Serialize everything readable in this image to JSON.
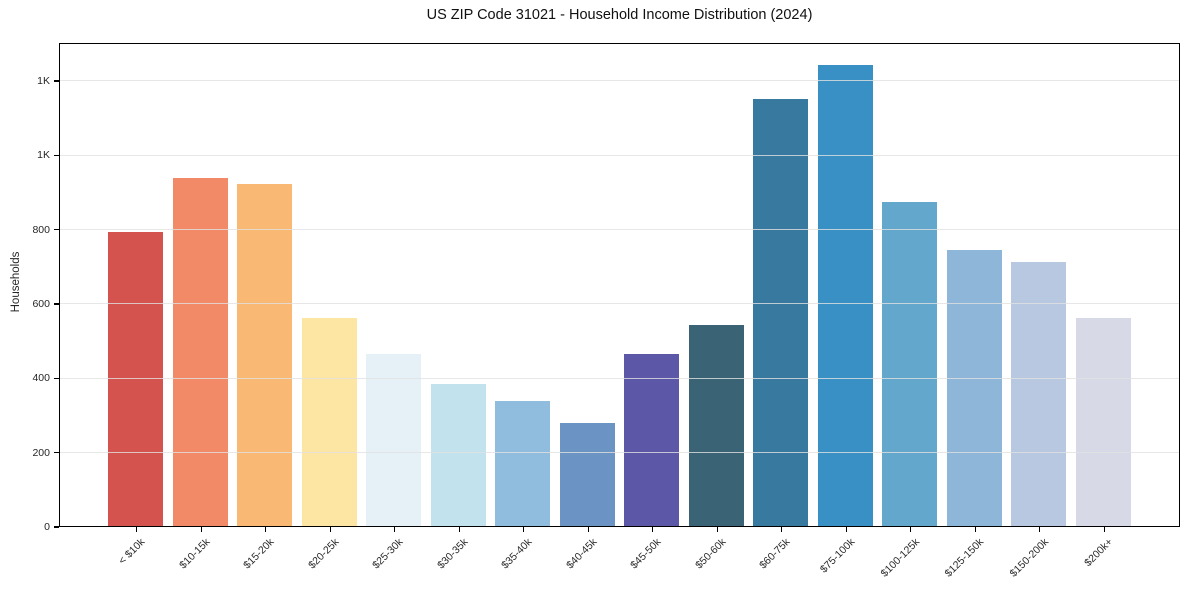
{
  "figure": {
    "background": "#ffffff"
  },
  "chart_data": {
    "type": "bar",
    "title": "US ZIP Code 31021 - Household Income Distribution (2024)",
    "xlabel": "",
    "ylabel": "Households",
    "categories": [
      "< $10k",
      "$10-15k",
      "$15-20k",
      "$20-25k",
      "$25-30k",
      "$30-35k",
      "$35-40k",
      "$40-45k",
      "$45-50k",
      "$50-60k",
      "$60-75k",
      "$75-100k",
      "$100-125k",
      "$125-150k",
      "$150-200k",
      "$200k+"
    ],
    "values": [
      790,
      935,
      920,
      560,
      462,
      382,
      336,
      278,
      462,
      542,
      1148,
      1239,
      871,
      743,
      711,
      560
    ],
    "bar_colors": [
      "#d5534e",
      "#f28a68",
      "#f9b873",
      "#fde6a3",
      "#e5f1f6",
      "#c2e2ee",
      "#90bddd",
      "#6b93c4",
      "#5c57a7",
      "#3a6375",
      "#37799f",
      "#3890c4",
      "#64a7cd",
      "#8db6d8",
      "#b7c8e0",
      "#d8d9e6"
    ],
    "ylim": [
      0,
      1302
    ],
    "yticks": {
      "values": [
        0,
        200,
        400,
        600,
        800,
        1000,
        1200
      ],
      "labels": [
        "0",
        "200",
        "400",
        "600",
        "800",
        "1K",
        "1K"
      ]
    },
    "grid": "horizontal-over-bars",
    "legend": "none",
    "grid_color": "#e8e8e8",
    "spine_color": "#000000",
    "tick_label_color": "#262626"
  }
}
